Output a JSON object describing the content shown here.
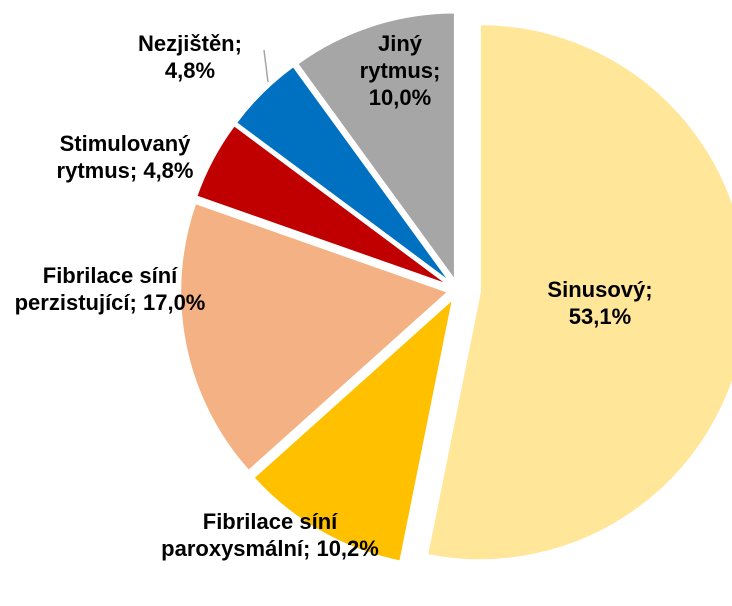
{
  "chart_data": {
    "type": "pie",
    "categories": [
      "Sinusový;",
      "Fibrilace síní paroxysmální;",
      "Fibrilace síní perzistující;",
      "Stimulovaný rytmus;",
      "Nezjištěn;",
      "Jiný rytmus;"
    ],
    "values": [
      53.1,
      10.2,
      17.0,
      4.8,
      4.8,
      10.0
    ],
    "value_labels": [
      "53,1%",
      "10,2%",
      "17,0%",
      "4,8%",
      "4,8%",
      "10,0%"
    ],
    "colors": [
      "#FFE699",
      "#FFC000",
      "#F4B183",
      "#C00000",
      "#0070C0",
      "#A6A6A6"
    ]
  }
}
